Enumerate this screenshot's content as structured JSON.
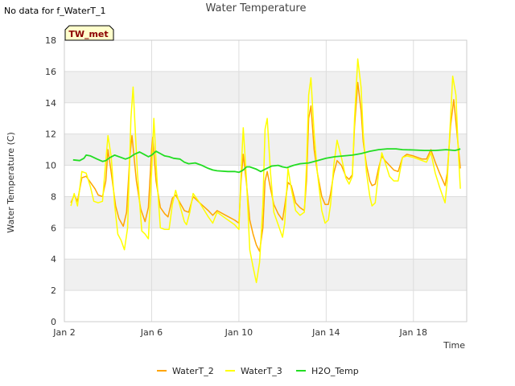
{
  "notice": "No data for f_WaterT_1",
  "chart_data": {
    "type": "line",
    "title": "Water Temperature",
    "xlabel": "Time",
    "ylabel": "Water Temperature (C)",
    "badge": "TW_met",
    "ylim": [
      0,
      18
    ],
    "xlim": [
      0,
      18
    ],
    "y_ticks": [
      0,
      2,
      4,
      6,
      8,
      10,
      12,
      14,
      16,
      18
    ],
    "x_ticks": [
      {
        "value": 0,
        "label": "Jan 2"
      },
      {
        "value": 4,
        "label": "Jan 6"
      },
      {
        "value": 8,
        "label": "Jan 10"
      },
      {
        "value": 12,
        "label": "Jan 14"
      },
      {
        "value": 16,
        "label": "Jan 18"
      }
    ],
    "grid": true,
    "legend_position": "bottom",
    "series": [
      {
        "name": "WaterT_2",
        "color": "#FFA500",
        "points": [
          [
            0.3,
            7.6
          ],
          [
            0.45,
            8.1
          ],
          [
            0.6,
            7.7
          ],
          [
            0.8,
            9.2
          ],
          [
            1.0,
            9.3
          ],
          [
            1.2,
            8.9
          ],
          [
            1.4,
            8.5
          ],
          [
            1.55,
            8.1
          ],
          [
            1.75,
            8.0
          ],
          [
            1.9,
            9.0
          ],
          [
            2.0,
            11.0
          ],
          [
            2.15,
            9.5
          ],
          [
            2.35,
            7.4
          ],
          [
            2.5,
            6.6
          ],
          [
            2.7,
            6.1
          ],
          [
            2.85,
            7.0
          ],
          [
            3.0,
            10.5
          ],
          [
            3.1,
            11.9
          ],
          [
            3.3,
            9.0
          ],
          [
            3.5,
            7.2
          ],
          [
            3.7,
            6.4
          ],
          [
            3.85,
            7.3
          ],
          [
            4.0,
            11.0
          ],
          [
            4.05,
            11.8
          ],
          [
            4.2,
            9.0
          ],
          [
            4.4,
            7.3
          ],
          [
            4.6,
            6.9
          ],
          [
            4.75,
            6.7
          ],
          [
            4.95,
            7.9
          ],
          [
            5.1,
            8.1
          ],
          [
            5.3,
            7.6
          ],
          [
            5.5,
            7.1
          ],
          [
            5.7,
            7.0
          ],
          [
            5.9,
            8.0
          ],
          [
            6.2,
            7.6
          ],
          [
            6.6,
            7.1
          ],
          [
            6.8,
            6.8
          ],
          [
            7.0,
            7.1
          ],
          [
            7.4,
            6.8
          ],
          [
            7.8,
            6.5
          ],
          [
            8.0,
            6.3
          ],
          [
            8.1,
            9.0
          ],
          [
            8.2,
            10.7
          ],
          [
            8.35,
            8.8
          ],
          [
            8.5,
            6.5
          ],
          [
            8.65,
            5.6
          ],
          [
            8.8,
            4.9
          ],
          [
            8.95,
            4.5
          ],
          [
            9.1,
            6.0
          ],
          [
            9.2,
            9.0
          ],
          [
            9.3,
            9.6
          ],
          [
            9.45,
            8.5
          ],
          [
            9.6,
            7.5
          ],
          [
            9.8,
            6.9
          ],
          [
            10.0,
            6.5
          ],
          [
            10.1,
            7.4
          ],
          [
            10.25,
            8.9
          ],
          [
            10.4,
            8.7
          ],
          [
            10.6,
            7.6
          ],
          [
            10.8,
            7.3
          ],
          [
            11.0,
            7.1
          ],
          [
            11.1,
            9.0
          ],
          [
            11.2,
            13.0
          ],
          [
            11.3,
            13.8
          ],
          [
            11.45,
            11.0
          ],
          [
            11.6,
            9.5
          ],
          [
            11.8,
            8.0
          ],
          [
            11.95,
            7.5
          ],
          [
            12.1,
            7.5
          ],
          [
            12.2,
            8.2
          ],
          [
            12.35,
            9.5
          ],
          [
            12.5,
            10.3
          ],
          [
            12.7,
            10.0
          ],
          [
            12.9,
            9.3
          ],
          [
            13.05,
            9.1
          ],
          [
            13.2,
            9.4
          ],
          [
            13.3,
            12.5
          ],
          [
            13.45,
            15.3
          ],
          [
            13.6,
            13.5
          ],
          [
            13.7,
            11.5
          ],
          [
            13.85,
            10.0
          ],
          [
            14.0,
            9.0
          ],
          [
            14.1,
            8.7
          ],
          [
            14.25,
            8.8
          ],
          [
            14.4,
            9.8
          ],
          [
            14.55,
            10.6
          ],
          [
            14.7,
            10.3
          ],
          [
            14.9,
            10.0
          ],
          [
            15.1,
            9.7
          ],
          [
            15.3,
            9.6
          ],
          [
            15.5,
            10.5
          ],
          [
            15.7,
            10.7
          ],
          [
            16.0,
            10.6
          ],
          [
            16.4,
            10.4
          ],
          [
            16.6,
            10.4
          ],
          [
            16.8,
            11.0
          ],
          [
            17.0,
            10.2
          ],
          [
            17.2,
            9.5
          ],
          [
            17.45,
            8.7
          ],
          [
            17.55,
            9.5
          ],
          [
            17.7,
            12.5
          ],
          [
            17.85,
            14.2
          ],
          [
            18.0,
            12.0
          ],
          [
            18.15,
            9.8
          ]
        ]
      },
      {
        "name": "WaterT_3",
        "color": "#FFFF00",
        "points": [
          [
            0.3,
            7.4
          ],
          [
            0.45,
            8.2
          ],
          [
            0.6,
            7.4
          ],
          [
            0.8,
            9.6
          ],
          [
            1.0,
            9.5
          ],
          [
            1.2,
            8.6
          ],
          [
            1.35,
            7.7
          ],
          [
            1.55,
            7.6
          ],
          [
            1.75,
            7.7
          ],
          [
            1.85,
            9.5
          ],
          [
            2.0,
            11.9
          ],
          [
            2.15,
            10.5
          ],
          [
            2.3,
            7.5
          ],
          [
            2.45,
            5.6
          ],
          [
            2.6,
            5.2
          ],
          [
            2.75,
            4.6
          ],
          [
            2.9,
            6.0
          ],
          [
            3.05,
            13.0
          ],
          [
            3.15,
            15.0
          ],
          [
            3.35,
            9.5
          ],
          [
            3.55,
            5.8
          ],
          [
            3.7,
            5.6
          ],
          [
            3.85,
            5.3
          ],
          [
            4.0,
            9.5
          ],
          [
            4.1,
            13.0
          ],
          [
            4.25,
            9.0
          ],
          [
            4.4,
            6.0
          ],
          [
            4.6,
            5.9
          ],
          [
            4.8,
            5.9
          ],
          [
            4.95,
            7.5
          ],
          [
            5.1,
            8.4
          ],
          [
            5.3,
            7.4
          ],
          [
            5.5,
            6.4
          ],
          [
            5.6,
            6.2
          ],
          [
            5.75,
            7.0
          ],
          [
            5.9,
            8.2
          ],
          [
            6.2,
            7.6
          ],
          [
            6.6,
            6.7
          ],
          [
            6.8,
            6.3
          ],
          [
            7.0,
            7.0
          ],
          [
            7.4,
            6.6
          ],
          [
            7.8,
            6.2
          ],
          [
            8.0,
            5.9
          ],
          [
            8.1,
            9.5
          ],
          [
            8.2,
            12.4
          ],
          [
            8.35,
            9.0
          ],
          [
            8.5,
            4.6
          ],
          [
            8.65,
            3.5
          ],
          [
            8.8,
            2.5
          ],
          [
            8.95,
            3.8
          ],
          [
            9.1,
            7.5
          ],
          [
            9.2,
            12.3
          ],
          [
            9.3,
            13.0
          ],
          [
            9.45,
            9.5
          ],
          [
            9.6,
            7.0
          ],
          [
            9.8,
            6.2
          ],
          [
            10.0,
            5.4
          ],
          [
            10.1,
            6.3
          ],
          [
            10.25,
            9.8
          ],
          [
            10.4,
            8.5
          ],
          [
            10.6,
            7.1
          ],
          [
            10.8,
            6.8
          ],
          [
            11.0,
            7.0
          ],
          [
            11.1,
            10.0
          ],
          [
            11.2,
            14.5
          ],
          [
            11.3,
            15.6
          ],
          [
            11.45,
            12.0
          ],
          [
            11.6,
            9.5
          ],
          [
            11.8,
            7.1
          ],
          [
            11.95,
            6.3
          ],
          [
            12.1,
            6.5
          ],
          [
            12.2,
            7.5
          ],
          [
            12.35,
            10.0
          ],
          [
            12.5,
            11.6
          ],
          [
            12.7,
            10.5
          ],
          [
            12.9,
            9.2
          ],
          [
            13.05,
            8.8
          ],
          [
            13.2,
            9.3
          ],
          [
            13.3,
            13.0
          ],
          [
            13.45,
            16.8
          ],
          [
            13.6,
            15.0
          ],
          [
            13.7,
            12.0
          ],
          [
            13.85,
            9.5
          ],
          [
            14.0,
            8.0
          ],
          [
            14.1,
            7.4
          ],
          [
            14.25,
            7.6
          ],
          [
            14.4,
            9.5
          ],
          [
            14.55,
            10.8
          ],
          [
            14.7,
            10.2
          ],
          [
            14.9,
            9.3
          ],
          [
            15.1,
            9.0
          ],
          [
            15.3,
            9.0
          ],
          [
            15.5,
            10.5
          ],
          [
            15.7,
            10.6
          ],
          [
            16.0,
            10.5
          ],
          [
            16.4,
            10.3
          ],
          [
            16.6,
            10.2
          ],
          [
            16.8,
            10.8
          ],
          [
            17.0,
            9.5
          ],
          [
            17.2,
            8.6
          ],
          [
            17.45,
            7.6
          ],
          [
            17.55,
            9.0
          ],
          [
            17.7,
            13.0
          ],
          [
            17.8,
            15.7
          ],
          [
            17.95,
            14.5
          ],
          [
            18.05,
            11.0
          ],
          [
            18.15,
            8.5
          ]
        ]
      },
      {
        "name": "H2O_Temp",
        "color": "#22DD22",
        "points": [
          [
            0.4,
            10.35
          ],
          [
            0.7,
            10.3
          ],
          [
            0.9,
            10.45
          ],
          [
            1.0,
            10.65
          ],
          [
            1.2,
            10.6
          ],
          [
            1.5,
            10.4
          ],
          [
            1.75,
            10.25
          ],
          [
            1.9,
            10.3
          ],
          [
            2.1,
            10.5
          ],
          [
            2.3,
            10.65
          ],
          [
            2.6,
            10.5
          ],
          [
            2.8,
            10.4
          ],
          [
            3.0,
            10.5
          ],
          [
            3.2,
            10.7
          ],
          [
            3.45,
            10.85
          ],
          [
            3.65,
            10.7
          ],
          [
            3.85,
            10.55
          ],
          [
            4.0,
            10.65
          ],
          [
            4.2,
            10.9
          ],
          [
            4.4,
            10.75
          ],
          [
            4.6,
            10.6
          ],
          [
            4.8,
            10.55
          ],
          [
            5.0,
            10.45
          ],
          [
            5.3,
            10.4
          ],
          [
            5.5,
            10.2
          ],
          [
            5.7,
            10.1
          ],
          [
            6.0,
            10.15
          ],
          [
            6.3,
            10.0
          ],
          [
            6.6,
            9.8
          ],
          [
            6.8,
            9.7
          ],
          [
            7.0,
            9.65
          ],
          [
            7.5,
            9.6
          ],
          [
            7.8,
            9.6
          ],
          [
            8.0,
            9.55
          ],
          [
            8.2,
            9.7
          ],
          [
            8.35,
            9.9
          ],
          [
            8.5,
            9.9
          ],
          [
            8.8,
            9.75
          ],
          [
            9.0,
            9.6
          ],
          [
            9.2,
            9.75
          ],
          [
            9.5,
            9.95
          ],
          [
            9.8,
            10.0
          ],
          [
            10.0,
            9.9
          ],
          [
            10.2,
            9.85
          ],
          [
            10.5,
            10.0
          ],
          [
            10.8,
            10.1
          ],
          [
            11.2,
            10.15
          ],
          [
            11.6,
            10.3
          ],
          [
            12.0,
            10.45
          ],
          [
            12.4,
            10.55
          ],
          [
            12.8,
            10.6
          ],
          [
            13.2,
            10.65
          ],
          [
            13.6,
            10.75
          ],
          [
            14.0,
            10.9
          ],
          [
            14.4,
            11.0
          ],
          [
            14.8,
            11.05
          ],
          [
            15.2,
            11.05
          ],
          [
            15.5,
            11.0
          ],
          [
            16.0,
            10.98
          ],
          [
            16.5,
            10.95
          ],
          [
            17.0,
            10.95
          ],
          [
            17.5,
            11.0
          ],
          [
            17.9,
            10.95
          ],
          [
            18.05,
            11.0
          ],
          [
            18.15,
            11.05
          ]
        ]
      }
    ]
  }
}
